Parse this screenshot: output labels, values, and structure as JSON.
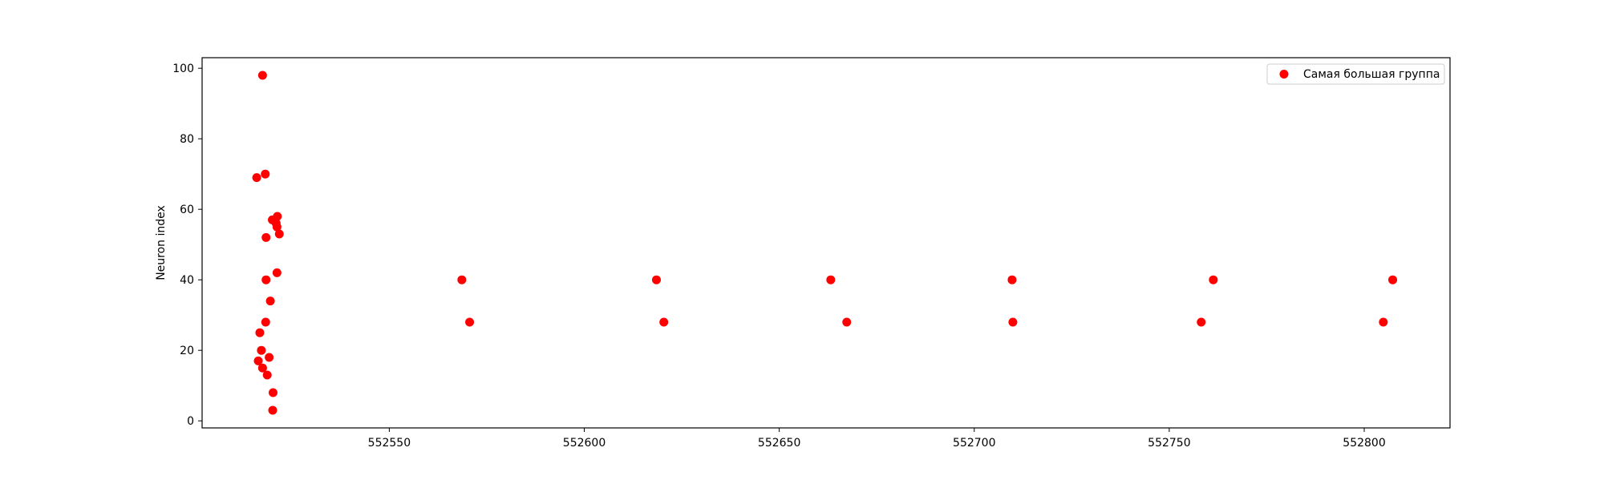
{
  "chart_data": {
    "type": "scatter",
    "title": "",
    "xlabel": "",
    "ylabel": "Neuron index",
    "xlim": [
      552502,
      552822
    ],
    "ylim": [
      -2,
      103
    ],
    "xticks": [
      552550,
      552600,
      552650,
      552700,
      552750,
      552800
    ],
    "xtick_labels": [
      "552550",
      "552600",
      "552650",
      "552700",
      "552750",
      "552800"
    ],
    "yticks": [
      0,
      20,
      40,
      60,
      80,
      100
    ],
    "ytick_labels": [
      "0",
      "20",
      "40",
      "60",
      "80",
      "100"
    ],
    "grid": false,
    "legend_position": "top-right",
    "series": [
      {
        "name": "Самая большая группа",
        "color": "#ff0000",
        "marker": "circle",
        "points": [
          {
            "x": 552517.5,
            "y": 98
          },
          {
            "x": 552516.0,
            "y": 69
          },
          {
            "x": 552518.2,
            "y": 70
          },
          {
            "x": 552520.0,
            "y": 57
          },
          {
            "x": 552521.3,
            "y": 58
          },
          {
            "x": 552521.0,
            "y": 56
          },
          {
            "x": 552521.2,
            "y": 55
          },
          {
            "x": 552518.4,
            "y": 52
          },
          {
            "x": 552521.8,
            "y": 53
          },
          {
            "x": 552518.4,
            "y": 40
          },
          {
            "x": 552521.2,
            "y": 42
          },
          {
            "x": 552519.5,
            "y": 34
          },
          {
            "x": 552518.3,
            "y": 28
          },
          {
            "x": 552516.8,
            "y": 25
          },
          {
            "x": 552517.2,
            "y": 20
          },
          {
            "x": 552516.4,
            "y": 17
          },
          {
            "x": 552519.2,
            "y": 18
          },
          {
            "x": 552517.5,
            "y": 15
          },
          {
            "x": 552518.7,
            "y": 13
          },
          {
            "x": 552520.2,
            "y": 8
          },
          {
            "x": 552520.1,
            "y": 3
          },
          {
            "x": 552568.6,
            "y": 40
          },
          {
            "x": 552570.6,
            "y": 28
          },
          {
            "x": 552618.5,
            "y": 40
          },
          {
            "x": 552620.4,
            "y": 28
          },
          {
            "x": 552663.2,
            "y": 40
          },
          {
            "x": 552667.3,
            "y": 28
          },
          {
            "x": 552709.7,
            "y": 40
          },
          {
            "x": 552709.9,
            "y": 28
          },
          {
            "x": 552758.2,
            "y": 28
          },
          {
            "x": 552761.3,
            "y": 40
          },
          {
            "x": 552804.9,
            "y": 28
          },
          {
            "x": 552807.3,
            "y": 40
          }
        ]
      }
    ]
  }
}
